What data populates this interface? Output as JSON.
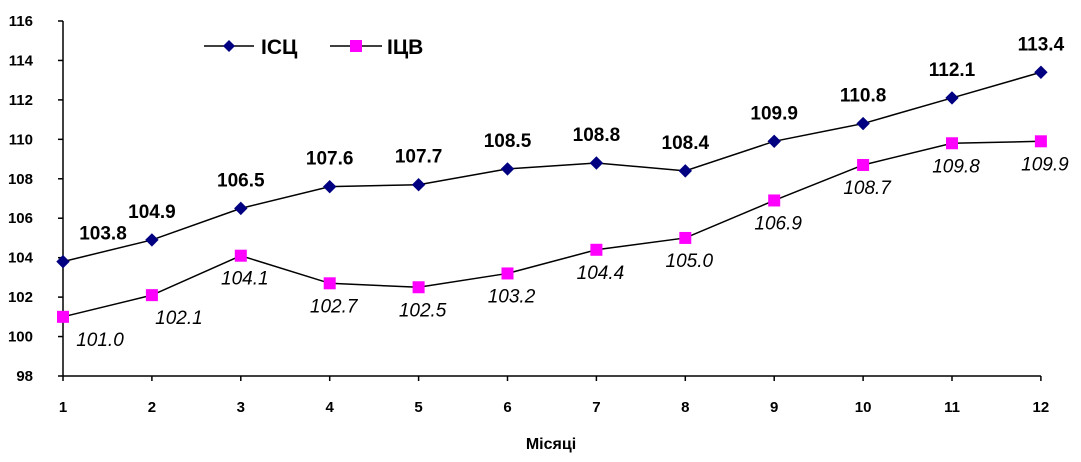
{
  "chart_data": {
    "type": "line",
    "title": "",
    "xlabel": "Місяці",
    "ylabel": "",
    "x": [
      1,
      2,
      3,
      4,
      5,
      6,
      7,
      8,
      9,
      10,
      11,
      12
    ],
    "ylim": [
      98,
      116
    ],
    "yticks": [
      98,
      100,
      102,
      104,
      106,
      108,
      110,
      112,
      114,
      116
    ],
    "grid": false,
    "legend": "top-left",
    "series": [
      {
        "name": "ІСЦ",
        "values": [
          103.8,
          104.9,
          106.5,
          107.6,
          107.7,
          108.5,
          108.8,
          108.4,
          109.9,
          110.8,
          112.1,
          113.4
        ],
        "labels": [
          "103.8",
          "104.9",
          "106.5",
          "107.6",
          "107.7",
          "108.5",
          "108.8",
          "108.4",
          "109.9",
          "110.8",
          "112.1",
          "113.4"
        ],
        "color": "#000080",
        "marker": "diamond",
        "label_style": "bold"
      },
      {
        "name": "ІЦВ",
        "values": [
          101.0,
          102.1,
          104.1,
          102.7,
          102.5,
          103.2,
          104.4,
          105.0,
          106.9,
          108.7,
          109.8,
          109.9
        ],
        "labels": [
          "101.0",
          "102.1",
          "104.1",
          "102.7",
          "102.5",
          "103.2",
          "104.4",
          "105.0",
          "106.9",
          "108.7",
          "109.8",
          "109.9"
        ],
        "color": "#FF00FF",
        "marker": "square",
        "label_style": "italic"
      }
    ]
  }
}
